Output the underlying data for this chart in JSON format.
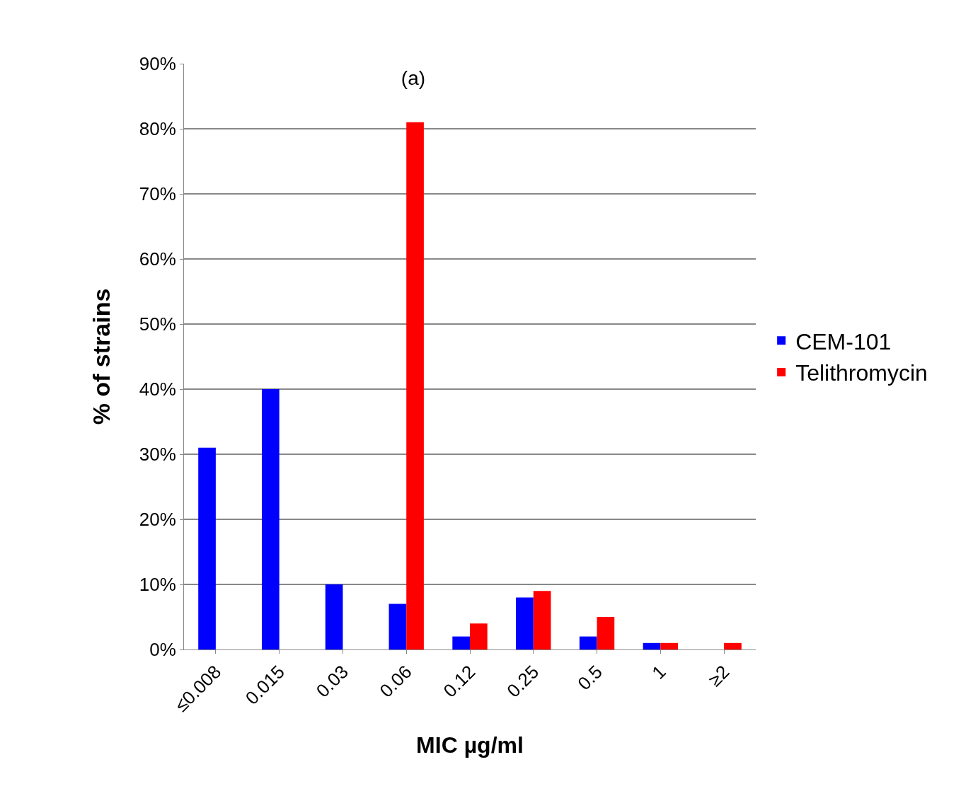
{
  "chart_data": {
    "type": "bar",
    "title": "(a)",
    "xlabel": "MIC µg/ml",
    "ylabel": "% of strains",
    "categories": [
      "≤0.008",
      "0.015",
      "0.03",
      "0.06",
      "0.12",
      "0.25",
      "0.5",
      "1",
      "≥2"
    ],
    "series": [
      {
        "name": "CEM-101",
        "color": "#0000ff",
        "values": [
          31,
          40,
          10,
          7,
          2,
          8,
          2,
          1,
          null
        ]
      },
      {
        "name": "Telithromycin",
        "color": "#ff0000",
        "values": [
          null,
          null,
          null,
          81,
          4,
          9,
          5,
          1,
          1
        ]
      }
    ],
    "ylim": [
      0,
      90
    ],
    "yticks": [
      {
        "value": 0,
        "label": "0%"
      },
      {
        "value": 10,
        "label": "10%"
      },
      {
        "value": 20,
        "label": "20%"
      },
      {
        "value": 30,
        "label": "30%"
      },
      {
        "value": 40,
        "label": "40%"
      },
      {
        "value": 50,
        "label": "50%"
      },
      {
        "value": 60,
        "label": "60%"
      },
      {
        "value": 70,
        "label": "70%"
      },
      {
        "value": 80,
        "label": "80%"
      },
      {
        "value": 90,
        "label": "90%"
      }
    ],
    "grid": "y",
    "legend": "right"
  }
}
